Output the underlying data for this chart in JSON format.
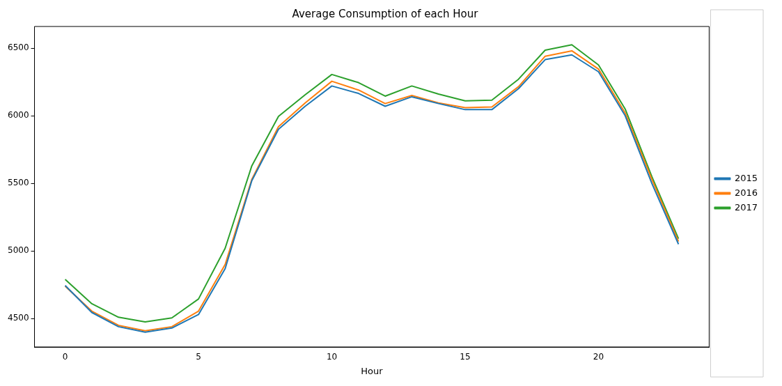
{
  "chart_data": {
    "type": "line",
    "title": "Average Consumption of each Hour",
    "xlabel": "Hour",
    "x": [
      0,
      1,
      2,
      3,
      4,
      5,
      6,
      7,
      8,
      9,
      10,
      11,
      12,
      13,
      14,
      15,
      16,
      17,
      18,
      19,
      20,
      21,
      22,
      23
    ],
    "series": [
      {
        "name": "2015",
        "color": "#1f77b4",
        "values": [
          4745,
          4545,
          4440,
          4400,
          4430,
          4530,
          4870,
          5520,
          5900,
          6070,
          6220,
          6165,
          6070,
          6140,
          6090,
          6045,
          6045,
          6200,
          6415,
          6450,
          6325,
          6000,
          5500,
          5050
        ]
      },
      {
        "name": "2016",
        "color": "#ff7f0e",
        "values": [
          4740,
          4555,
          4450,
          4410,
          4440,
          4555,
          4900,
          5530,
          5920,
          6095,
          6255,
          6190,
          6090,
          6150,
          6095,
          6060,
          6065,
          6215,
          6440,
          6480,
          6345,
          6020,
          5530,
          5070
        ]
      },
      {
        "name": "2017",
        "color": "#2ca02c",
        "values": [
          4790,
          4610,
          4510,
          4475,
          4505,
          4645,
          5020,
          5630,
          5995,
          6155,
          6305,
          6245,
          6145,
          6220,
          6160,
          6110,
          6115,
          6270,
          6485,
          6525,
          6375,
          6050,
          5550,
          5090
        ]
      }
    ],
    "xlim": [
      -1.15,
      24.15
    ],
    "xticks": [
      0,
      5,
      10,
      15,
      20
    ],
    "ylim": [
      4290,
      6660
    ],
    "yticks": [
      4500,
      5000,
      5500,
      6000,
      6500
    ],
    "grid": false,
    "legend": "right",
    "marker": "none",
    "line_style": "solid"
  }
}
